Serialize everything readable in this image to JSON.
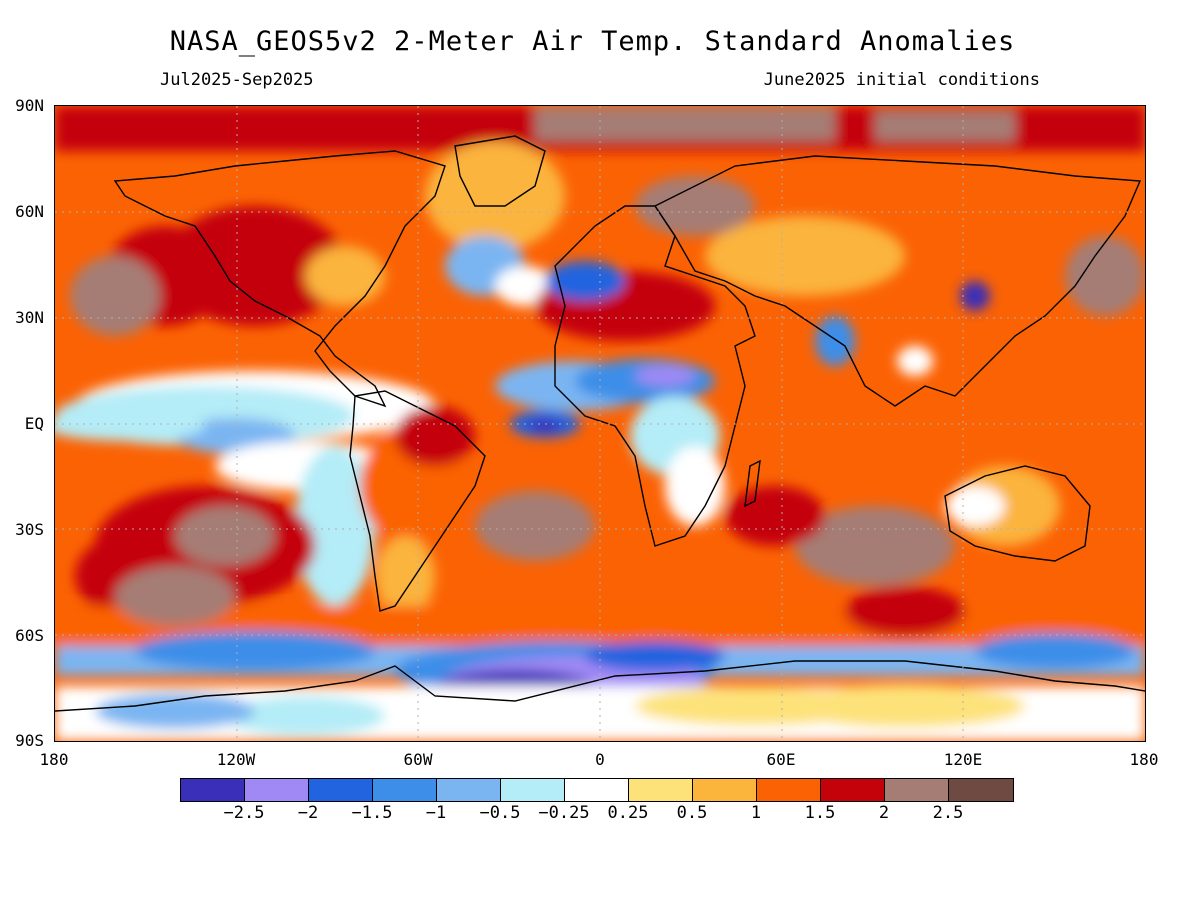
{
  "header": {
    "title": "NASA_GEOS5v2 2-Meter Air Temp. Standard Anomalies",
    "period": "Jul2025-Sep2025",
    "init": "June2025 initial conditions"
  },
  "axes": {
    "lat": [
      "90N",
      "60N",
      "30N",
      "EQ",
      "30S",
      "60S",
      "90S"
    ],
    "lon": [
      "180",
      "120W",
      "60W",
      "0",
      "60E",
      "120E",
      "180"
    ]
  },
  "colorbar": {
    "colors": [
      "#3a2fb8",
      "#a089f5",
      "#2264df",
      "#3c8ee8",
      "#7ab5f2",
      "#b4ecf7",
      "#ffffff",
      "#fde27a",
      "#fbb43c",
      "#fb6204",
      "#c4020a",
      "#a57d75",
      "#6e4a43"
    ],
    "labels": [
      "-2.5",
      "-2",
      "-1.5",
      "-1",
      "-0.5",
      "-0.25",
      "0.25",
      "0.5",
      "1",
      "1.5",
      "2",
      "2.5"
    ]
  }
}
